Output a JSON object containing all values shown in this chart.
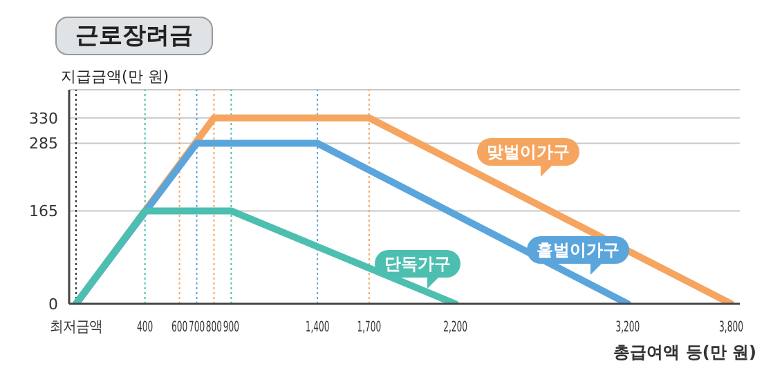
{
  "chart_data": {
    "type": "line",
    "title": "근로장려금",
    "ylabel": "지급금액(만 원)",
    "xlabel": "총급여액 등(만 원)",
    "series": [
      {
        "name": "맞벌이가구",
        "color": "#f5a55f",
        "x": [
          0,
          800,
          1700,
          3800
        ],
        "values": [
          0,
          330,
          330,
          0
        ]
      },
      {
        "name": "홑벌이가구",
        "color": "#5aa5dc",
        "x": [
          0,
          700,
          1400,
          3200
        ],
        "values": [
          0,
          285,
          285,
          0
        ]
      },
      {
        "name": "단독가구",
        "color": "#4dbfb0",
        "x": [
          0,
          400,
          900,
          2200
        ],
        "values": [
          0,
          165,
          165,
          0
        ]
      }
    ],
    "xlim": [
      -40,
      3850
    ],
    "ylim": [
      0,
      380
    ],
    "xticks": [
      {
        "value": 0,
        "label": "최저금액"
      },
      400,
      600,
      700,
      800,
      900,
      {
        "value": 1400,
        "label": "1,400"
      },
      {
        "value": 1700,
        "label": "1,700"
      },
      {
        "value": 2200,
        "label": "2,200"
      },
      {
        "value": 3200,
        "label": "3,200"
      },
      {
        "value": 3800,
        "label": "3,800"
      }
    ],
    "yticks": [
      0,
      165,
      285,
      330
    ],
    "grid": "y",
    "marker": "none",
    "line_style": "solid",
    "legend": false,
    "ref_lines": [
      {
        "axis": "x",
        "value": 0,
        "color": "#333333",
        "line_style": "dotted"
      },
      {
        "axis": "x",
        "value": 400,
        "color": "#4dbfb0",
        "line_style": "dotted"
      },
      {
        "axis": "x",
        "value": 600,
        "color": "#f5a55f",
        "line_style": "dotted"
      },
      {
        "axis": "x",
        "value": 700,
        "color": "#5aa5dc",
        "line_style": "dotted"
      },
      {
        "axis": "x",
        "value": 800,
        "color": "#f5a55f",
        "line_style": "dotted"
      },
      {
        "axis": "x",
        "value": 900,
        "color": "#4dbfb0",
        "line_style": "dotted"
      },
      {
        "axis": "x",
        "value": 1400,
        "color": "#5aa5dc",
        "line_style": "dotted"
      },
      {
        "axis": "x",
        "value": 1700,
        "color": "#f5a55f",
        "line_style": "dotted"
      }
    ]
  }
}
